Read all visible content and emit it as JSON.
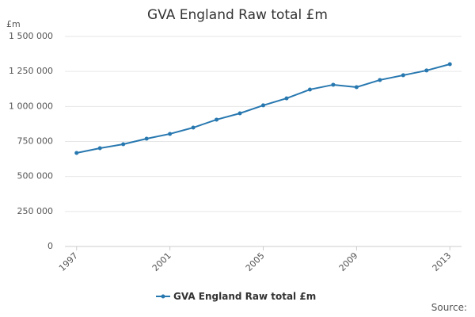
{
  "chart_data": {
    "type": "line",
    "title": "GVA England Raw total £m",
    "y_label": "£m",
    "source": "Source:",
    "x": [
      1997,
      1998,
      1999,
      2000,
      2001,
      2002,
      2003,
      2004,
      2005,
      2006,
      2007,
      2008,
      2009,
      2010,
      2011,
      2012,
      2013
    ],
    "series": [
      {
        "name": "GVA England Raw total £m",
        "color": "#2878b0",
        "values": [
          668000,
          702000,
          730000,
          770000,
          804000,
          849000,
          906000,
          951000,
          1008000,
          1058000,
          1121000,
          1155000,
          1138000,
          1189000,
          1223000,
          1257000,
          1302000
        ]
      }
    ],
    "xlim": [
      1996.5,
      2013.5
    ],
    "xticks": [
      1997,
      2001,
      2005,
      2009,
      2013
    ],
    "ylim": [
      0,
      1500000
    ],
    "yticks": [
      0,
      {
        "value": 250000,
        "label": "250 000"
      },
      {
        "value": 500000,
        "label": "500 000"
      },
      {
        "value": 750000,
        "label": "750 000"
      },
      {
        "value": 1000000,
        "label": "1 000 000"
      },
      {
        "value": 1250000,
        "label": "1 250 000"
      },
      {
        "value": 1500000,
        "label": "1 500 000"
      }
    ],
    "grid": true
  }
}
